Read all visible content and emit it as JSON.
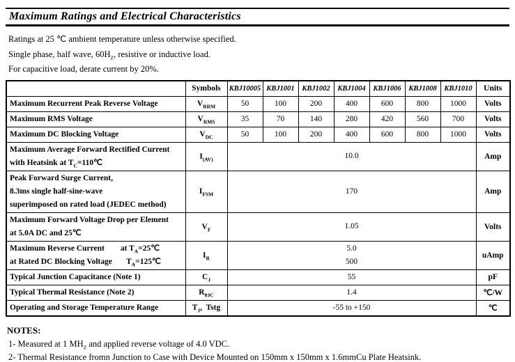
{
  "title": "Maximum Ratings and Electrical Characteristics",
  "intro_lines": [
    [
      {
        "t": "Ratings at 25 ℃ ambient temperature unless otherwise specified."
      }
    ],
    [
      {
        "t": "Single phase, half wave, 60H"
      },
      {
        "s": "Z"
      },
      {
        "t": ", resistive or inductive load."
      }
    ],
    [
      {
        "t": "For capacitive load, derate current by 20%."
      }
    ]
  ],
  "table": {
    "header": {
      "param": "",
      "symbols": "Symbols",
      "models": [
        "KBJ10005",
        "KBJ1001",
        "KBJ1002",
        "KBJ1004",
        "KBJ1006",
        "KBJ1008",
        "KBJ1010"
      ],
      "units": "Units"
    },
    "rows": [
      {
        "label": [
          [
            {
              "t": "Maximum Recurrent Peak Reverse Voltage"
            }
          ]
        ],
        "symbol": [
          {
            "t": "V"
          },
          {
            "s": "RRM"
          }
        ],
        "values": [
          "50",
          "100",
          "200",
          "400",
          "600",
          "800",
          "1000"
        ],
        "unit": [
          {
            "t": "Volts"
          }
        ]
      },
      {
        "label": [
          [
            {
              "t": "Maximum RMS Voltage"
            }
          ]
        ],
        "symbol": [
          {
            "t": "V"
          },
          {
            "s": "RMS"
          }
        ],
        "values": [
          "35",
          "70",
          "140",
          "280",
          "420",
          "560",
          "700"
        ],
        "unit": [
          {
            "t": "Volts"
          }
        ]
      },
      {
        "label": [
          [
            {
              "t": "Maximum DC Blocking Voltage"
            }
          ]
        ],
        "symbol": [
          {
            "t": "V"
          },
          {
            "s": "DC"
          }
        ],
        "values": [
          "50",
          "100",
          "200",
          "400",
          "600",
          "800",
          "1000"
        ],
        "unit": [
          {
            "t": "Volts"
          }
        ]
      },
      {
        "label": [
          [
            {
              "t": "Maximum Average Forward Rectified Current"
            }
          ],
          [
            {
              "t": "with Heatsink at T"
            },
            {
              "s": "C"
            },
            {
              "t": "=110℃"
            }
          ]
        ],
        "symbol": [
          {
            "t": "I"
          },
          {
            "s": "(AV)"
          }
        ],
        "span_values": [
          "10.0"
        ],
        "unit": [
          {
            "t": "Amp"
          }
        ]
      },
      {
        "label": [
          [
            {
              "t": "Peak Forward Surge Current,"
            }
          ],
          [
            {
              "t": "8.3ms single half-sine-wave"
            }
          ],
          [
            {
              "t": "superimposed on rated load (JEDEC method)"
            }
          ]
        ],
        "symbol": [
          {
            "t": "I"
          },
          {
            "s": "FSM"
          }
        ],
        "span_values": [
          "170"
        ],
        "unit": [
          {
            "t": "Amp"
          }
        ]
      },
      {
        "label": [
          [
            {
              "t": "Maximum Forward Voltage Drop per Element"
            }
          ],
          [
            {
              "t": "at 5.0A DC and 25℃"
            }
          ]
        ],
        "symbol": [
          {
            "t": "V"
          },
          {
            "s": "F"
          }
        ],
        "span_values": [
          "1.05"
        ],
        "unit": [
          {
            "t": "Volts"
          }
        ]
      },
      {
        "label": [
          [
            {
              "t": "Maximum Reverse Current        at T"
            },
            {
              "s": "A"
            },
            {
              "t": "=25℃"
            }
          ],
          [
            {
              "t": "at Rated DC Blocking Voltage       T"
            },
            {
              "s": "A"
            },
            {
              "t": "=125℃"
            }
          ]
        ],
        "symbol": [
          {
            "t": "I"
          },
          {
            "s": "R"
          }
        ],
        "span_values": [
          "5.0",
          "500"
        ],
        "unit": [
          {
            "t": "uAmp"
          }
        ]
      },
      {
        "label": [
          [
            {
              "t": "Typical Junction Capacitance (Note 1)"
            }
          ]
        ],
        "symbol": [
          {
            "t": "C"
          },
          {
            "s": "J"
          }
        ],
        "span_values": [
          "55"
        ],
        "unit": [
          {
            "t": "pF"
          }
        ]
      },
      {
        "label": [
          [
            {
              "t": "Typical Thermal Resistance (Note 2)"
            }
          ]
        ],
        "symbol": [
          {
            "t": "R"
          },
          {
            "s": "θJC"
          }
        ],
        "span_values": [
          "1.4"
        ],
        "unit": [
          {
            "t": "℃/W"
          }
        ]
      },
      {
        "label": [
          [
            {
              "t": "Operating and Storage Temperature Range"
            }
          ]
        ],
        "symbol": [
          {
            "t": "T"
          },
          {
            "s": "J"
          },
          {
            "t": ",  Tstg"
          }
        ],
        "span_values": [
          "-55 to +150"
        ],
        "unit": [
          {
            "t": "℃"
          }
        ]
      }
    ]
  },
  "notes": {
    "heading": "NOTES:",
    "items": [
      [
        {
          "t": "1- Measured at 1 MH"
        },
        {
          "s": "Z"
        },
        {
          "t": " and applied reverse voltage of 4.0 VDC."
        }
      ],
      [
        {
          "t": "2- Thermal Resistance fromn Junction to Case with Device Mounted on 150mm x 150mm x 1.6mmCu Plate Heatsink."
        }
      ]
    ]
  }
}
